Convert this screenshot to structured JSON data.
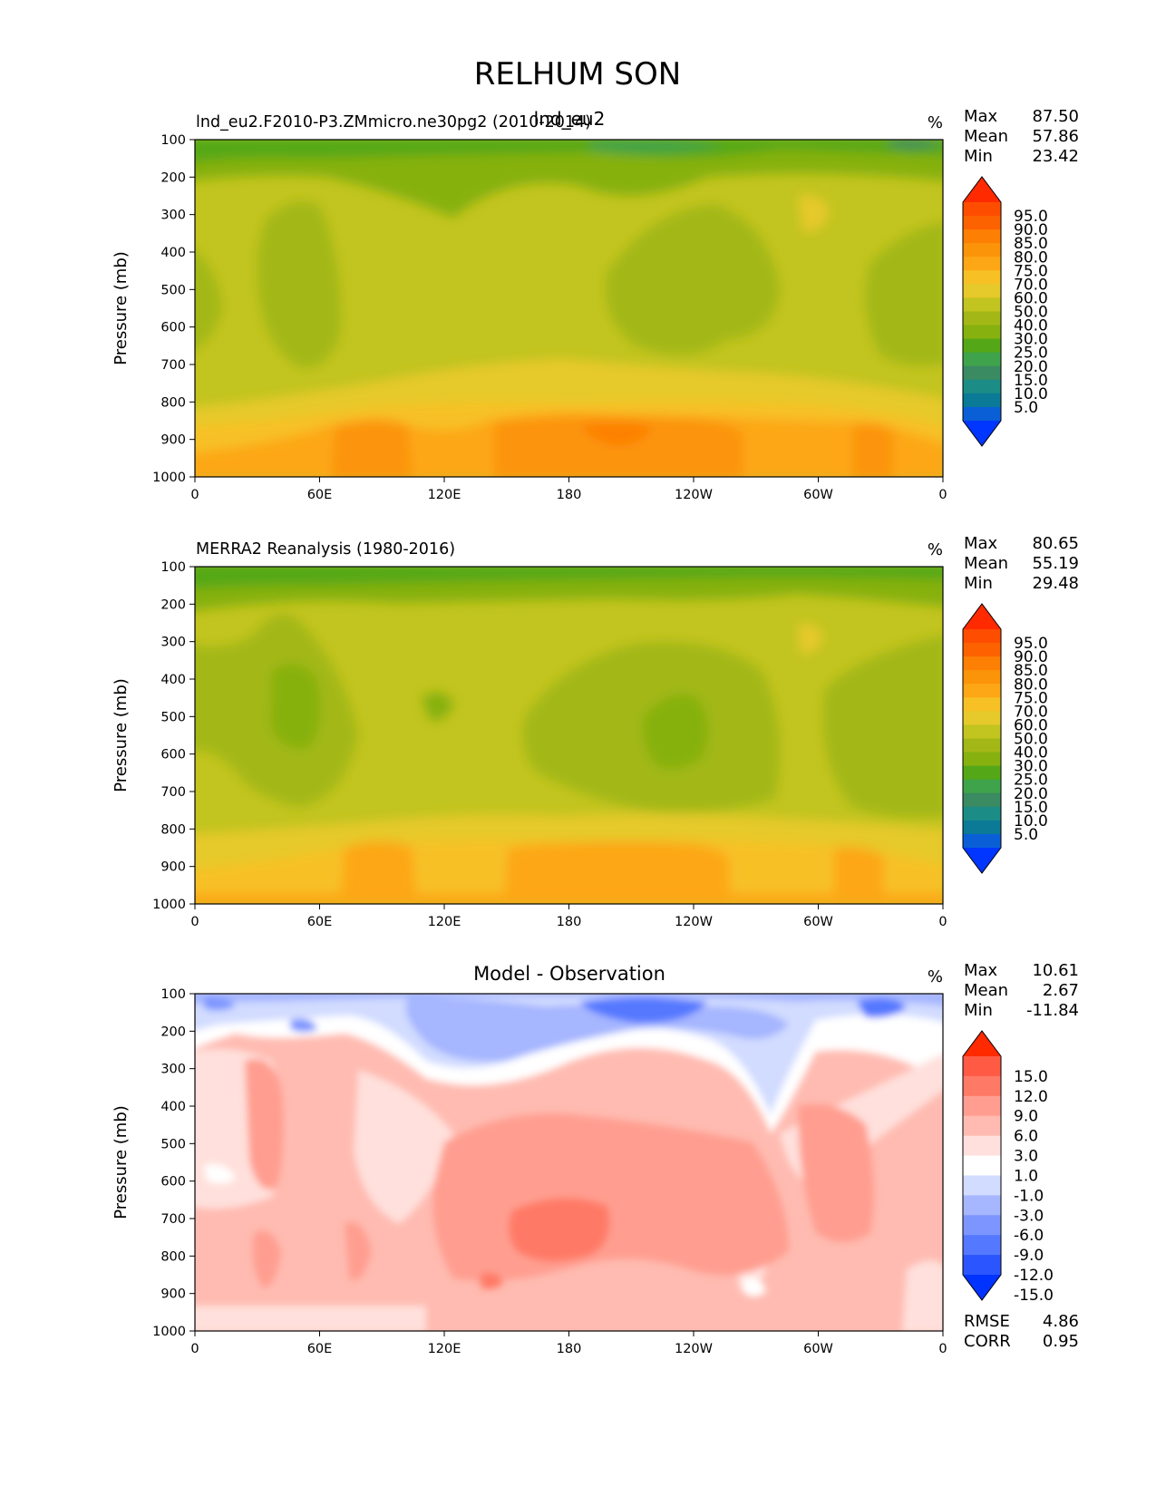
{
  "page": {
    "title": "RELHUM SON"
  },
  "colors": {
    "relhum_levels": [
      "#0036ff",
      "#0a5fd6",
      "#0a7a96",
      "#1c8c86",
      "#3a8a62",
      "#3ea34a",
      "#54a817",
      "#86b10f",
      "#a3b816",
      "#c2c41f",
      "#e6c92a",
      "#f7c125",
      "#fda716",
      "#fc940a",
      "#fd8004",
      "#fd6200",
      "#ff4d00",
      "#ff2a00"
    ],
    "diff_levels": [
      "#0033ff",
      "#2b56ff",
      "#5478ff",
      "#7d96ff",
      "#a6b6ff",
      "#d2dcff",
      "#ffffff",
      "#ffe0dc",
      "#ffbbb1",
      "#ff9e90",
      "#ff7a66",
      "#ff5a44",
      "#ff2a00"
    ],
    "axis": "#000000"
  },
  "chart_data": [
    {
      "type": "heatmap",
      "panel": "model",
      "title": "",
      "left_title": "lnd_eu2.F2010-P3.ZMmicro.ne30pg2 (2010-2014)",
      "center_title": "lnd_eu2",
      "units": "%",
      "stats": [
        {
          "label": "Max",
          "value": "87.50"
        },
        {
          "label": "Mean",
          "value": "57.86"
        },
        {
          "label": "Min",
          "value": "23.42"
        }
      ],
      "xlabel": "",
      "ylabel": "Pressure (mb)",
      "x_ticks": [
        "0",
        "60E",
        "120E",
        "180",
        "120W",
        "60W",
        "0"
      ],
      "y_ticks": [
        "100",
        "200",
        "300",
        "400",
        "500",
        "600",
        "700",
        "800",
        "900",
        "1000"
      ],
      "ylim": [
        1000,
        100
      ],
      "colorbar_levels": [
        "95.0",
        "90.0",
        "85.0",
        "80.0",
        "75.0",
        "70.0",
        "60.0",
        "50.0",
        "40.0",
        "30.0",
        "25.0",
        "20.0",
        "15.0",
        "10.0",
        "5.0"
      ]
    },
    {
      "type": "heatmap",
      "panel": "obs",
      "title": "",
      "left_title": "MERRA2 Reanalysis (1980-2016)",
      "center_title": "",
      "units": "%",
      "stats": [
        {
          "label": "Max",
          "value": "80.65"
        },
        {
          "label": "Mean",
          "value": "55.19"
        },
        {
          "label": "Min",
          "value": "29.48"
        }
      ],
      "xlabel": "",
      "ylabel": "Pressure (mb)",
      "x_ticks": [
        "0",
        "60E",
        "120E",
        "180",
        "120W",
        "60W",
        "0"
      ],
      "y_ticks": [
        "100",
        "200",
        "300",
        "400",
        "500",
        "600",
        "700",
        "800",
        "900",
        "1000"
      ],
      "ylim": [
        1000,
        100
      ],
      "colorbar_levels": [
        "95.0",
        "90.0",
        "85.0",
        "80.0",
        "75.0",
        "70.0",
        "60.0",
        "50.0",
        "40.0",
        "30.0",
        "25.0",
        "20.0",
        "15.0",
        "10.0",
        "5.0"
      ]
    },
    {
      "type": "heatmap",
      "panel": "diff",
      "title": "Model - Observation",
      "left_title": "",
      "center_title": "",
      "units": "%",
      "stats": [
        {
          "label": "Max",
          "value": "10.61"
        },
        {
          "label": "Mean",
          "value": "2.67"
        },
        {
          "label": "Min",
          "value": "-11.84"
        }
      ],
      "metrics": [
        {
          "label": "RMSE",
          "value": "4.86"
        },
        {
          "label": "CORR",
          "value": "0.95"
        }
      ],
      "xlabel": "",
      "ylabel": "Pressure (mb)",
      "x_ticks": [
        "0",
        "60E",
        "120E",
        "180",
        "120W",
        "60W",
        "0"
      ],
      "y_ticks": [
        "100",
        "200",
        "300",
        "400",
        "500",
        "600",
        "700",
        "800",
        "900",
        "1000"
      ],
      "ylim": [
        1000,
        100
      ],
      "colorbar_levels": [
        "15.0",
        "12.0",
        "9.0",
        "6.0",
        "3.0",
        "1.0",
        "-1.0",
        "-3.0",
        "-6.0",
        "-9.0",
        "-12.0",
        "-15.0"
      ]
    }
  ]
}
